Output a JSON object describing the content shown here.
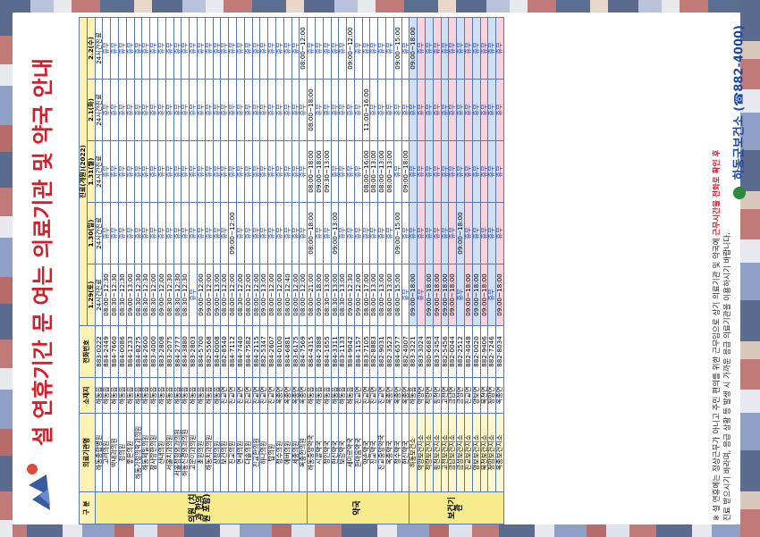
{
  "title": "설 연휴기간 문 여는 의료기관 및 약국 안내",
  "logo_text": "하동",
  "header": {
    "col_category": "구 분",
    "col_name": "의료기관명",
    "col_location": "소재지",
    "col_phone": "전화번호",
    "work_note": "진료(개원)(2022)",
    "days": [
      "1.29(토)",
      "1.30(일)",
      "1.31(월)",
      "2.1(화)",
      "2.2(수)"
    ],
    "day_notes": [
      "24시간진료",
      "24시간진료",
      "24시간진료",
      "24시간진료",
      "24시간진료"
    ]
  },
  "groups": [
    {
      "label": "의원 (치과 한의원 포함)",
      "rows": [
        [
          "하동종합병원",
          "하동읍",
          "883-0222",
          "24시간진료",
          "24시간진료",
          "24시간진료",
          "24시간진료",
          "24시간진료"
        ],
        [
          "고려의원",
          "하동읍",
          "884-2449",
          "08:00~12:30",
          "휴무",
          "휴무",
          "휴무",
          "휴무"
        ],
        [
          "박내과의원",
          "하동읍",
          "884-7660",
          "08:30~12:30",
          "휴무",
          "휴무",
          "휴무",
          "휴무"
        ],
        [
          "정의원",
          "하동읍",
          "884-0086",
          "08:30~12:30",
          "휴무",
          "휴무",
          "휴무",
          "휴무"
        ],
        [
          "좋은의원",
          "하동읍",
          "884-1233",
          "09:00~13:00",
          "휴무",
          "휴무",
          "휴무",
          "휴무"
        ],
        [
          "하동가정의학과의원",
          "하동읍",
          "884-8275",
          "08:30~12:30",
          "휴무",
          "휴무",
          "휴무",
          "휴무"
        ],
        [
          "하동제일의원",
          "하동읍",
          "884-2600",
          "08:30~12:30",
          "휴무",
          "휴무",
          "휴무",
          "휴무"
        ],
        [
          "참사랑한의원",
          "하동읍",
          "883-4000",
          "08:30~12:00",
          "휴무",
          "휴무",
          "휴무",
          "휴무"
        ],
        [
          "산내의원",
          "하동읍",
          "883-2808",
          "09:00~12:00",
          "휴무",
          "휴무",
          "휴무",
          "휴무"
        ],
        [
          "서울치과의원",
          "하동읍",
          "883-2075",
          "08:30~12:30",
          "휴무",
          "휴무",
          "휴무",
          "휴무"
        ],
        [
          "서울정형외과의원",
          "하동읍",
          "884-2777",
          "08:30~12:30",
          "휴무",
          "휴무",
          "휴무",
          "휴무"
        ],
        [
          "하동신경외과의원",
          "하동읍",
          "884-3880",
          "08:30~12:30",
          "휴무",
          "휴무",
          "휴무",
          "휴무"
        ],
        [
          "고운이과의원",
          "하동읍",
          "883-2803",
          "휴무",
          "휴무",
          "휴무",
          "휴무",
          "휴무"
        ],
        [
          "초원의원",
          "하동읍",
          "884-5700",
          "09:00~12:00",
          "휴무",
          "휴무",
          "휴무",
          "휴무"
        ],
        [
          "하동치과의원",
          "하동읍",
          "882-5568",
          "09:00~12:00",
          "휴무",
          "휴무",
          "휴무",
          "휴무"
        ],
        [
          "상정의원",
          "하동읍",
          "884-0008",
          "09:00~13:00",
          "휴무",
          "휴무",
          "휴무",
          "휴무"
        ],
        [
          "보건의원",
          "진교면",
          "882-8540",
          "08:00~12:00",
          "휴무",
          "휴무",
          "휴무",
          "휴무"
        ],
        [
          "진교의원",
          "진교면",
          "884-7112",
          "08:00~12:00",
          "09:00~12:00",
          "휴무",
          "휴무",
          "휴무"
        ],
        [
          "연세의원",
          "진교면",
          "884-7440",
          "08:30~12:00",
          "휴무",
          "휴무",
          "휴무",
          "휴무"
        ],
        [
          "다솔의원",
          "진교면",
          "884-7582",
          "08:00~12:00",
          "휴무",
          "휴무",
          "휴무",
          "휴무"
        ],
        [
          "진교한의원",
          "진교면",
          "884-2115",
          "08:00~12:00",
          "휴무",
          "휴무",
          "휴무",
          "휴무"
        ],
        [
          "하나의원",
          "진교면",
          "882-5347",
          "09:00~13:00",
          "휴무",
          "휴무",
          "휴무",
          "휴무"
        ],
        [
          "탑의원",
          "진교면",
          "884-2607",
          "08:00~12:00",
          "휴무",
          "휴무",
          "휴무",
          "휴무"
        ],
        [
          "정수의원",
          "옥종면",
          "884-0100",
          "08:00~12:00",
          "휴무",
          "휴무",
          "휴무",
          "휴무"
        ],
        [
          "에버의원",
          "옥종면",
          "884-6881",
          "08:00~12:40",
          "휴무",
          "휴무",
          "휴무",
          "휴무"
        ],
        [
          "세종의원",
          "옥종면",
          "883-6175",
          "08:00~12:00",
          "휴무",
          "휴무",
          "휴무",
          "휴무"
        ],
        [
          "옥종한의원",
          "옥종면",
          "884-7569",
          "08:00~12:00",
          "휴무",
          "휴무",
          "휴무",
          "08:00~12:00"
        ]
      ]
    },
    {
      "label": "약국",
      "rows": [
        [
          "하동중앙약국",
          "하동읍",
          "884-4315",
          "08:00~21:00",
          "08:00~18:00",
          "08:00~18:00",
          "08:00~18:00",
          "휴무"
        ],
        [
          "시골약국",
          "하동읍",
          "884-2888",
          "09:00~18:00",
          "휴무",
          "09:00~18:00",
          "휴무",
          "휴무"
        ],
        [
          "정인약국",
          "하동읍",
          "884-1655",
          "08:30~13:00",
          "휴무",
          "09:30~13:00",
          "휴무",
          "휴무"
        ],
        [
          "한신약국",
          "하동읍",
          "884-3311",
          "08:30~13:00",
          "09:00~13:00",
          "휴무",
          "휴무",
          "휴무"
        ],
        [
          "보광약국",
          "하동읍",
          "883-1133",
          "08:30~13:00",
          "휴무",
          "휴무",
          "휴무",
          "휴무"
        ],
        [
          "새미르약국",
          "하동읍",
          "884-9042",
          "09:00~12:30",
          "휴무",
          "휴무",
          "휴무",
          "09:00~12:00"
        ],
        [
          "한마음약국",
          "진교면",
          "884-1157",
          "09:00~12:00",
          "휴무",
          "휴무",
          "휴무",
          "휴무"
        ],
        [
          "약손약국",
          "진교면",
          "883-7105",
          "08:00~17:00",
          "휴무",
          "08:00~16:00",
          "11:00~16:00",
          "휴무"
        ],
        [
          "진교약국",
          "진교면",
          "882-8883",
          "08:00~13:00",
          "휴무",
          "08:00~13:00",
          "휴무",
          "휴무"
        ],
        [
          "진교중앙약국",
          "진교면",
          "882-9031",
          "08:00~13:00",
          "휴무",
          "08:00~13:00",
          "휴무",
          "휴무"
        ],
        [
          "옥종약국",
          "옥종면",
          "882-3523",
          "08:00~13:00",
          "휴무",
          "08:00~13:00",
          "휴무",
          "휴무"
        ],
        [
          "정수약국",
          "옥종면",
          "884-6577",
          "08:00~15:00",
          "09:00~15:00",
          "휴무",
          "휴무",
          "09:00~15:00"
        ],
        [
          "한신약국",
          "옥종면",
          "882-4007",
          "휴무",
          "휴무",
          "09:00~18:00",
          "휴무",
          "휴무"
        ]
      ]
    },
    {
      "label": "보건기관",
      "rows": [
        [
          "하동보건소",
          "하동읍",
          "883-3221",
          "09:00~18:00",
          "휴무",
          "휴무",
          "휴무",
          "09:00~18:00"
        ],
        [
          "악양보건지소",
          "악양면",
          "883-3024",
          "휴무",
          "휴무",
          "휴무",
          "휴무",
          "휴무"
        ],
        [
          "적량보건지소",
          "적량면",
          "880-6683",
          "09:00~18:00",
          "휴무",
          "휴무",
          "휴무",
          "휴무"
        ],
        [
          "횡천보건지소",
          "횡천면",
          "883-2454",
          "09:00~18:00",
          "휴무",
          "휴무",
          "휴무",
          "휴무"
        ],
        [
          "고전보건지소",
          "고전면",
          "882-5456",
          "09:00~18:00",
          "휴무",
          "휴무",
          "휴무",
          "휴무"
        ],
        [
          "금남보건지소",
          "금남면",
          "882-0044",
          "09:00~18:00",
          "휴무",
          "휴무",
          "휴무",
          "휴무"
        ],
        [
          "금성보건지소",
          "금성면",
          "882-2512",
          "휴무",
          "09:00~18:00",
          "휴무",
          "휴무",
          "휴무"
        ],
        [
          "진교보건지소",
          "진교면",
          "882-4048",
          "09:00~18:00",
          "휴무",
          "휴무",
          "휴무",
          "휴무"
        ],
        [
          "양보보건지소",
          "양보면",
          "882-0020",
          "09:00~18:00",
          "휴무",
          "휴무",
          "휴무",
          "휴무"
        ],
        [
          "북천보건지소",
          "북천면",
          "882-9406",
          "09:00~18:00",
          "휴무",
          "휴무",
          "휴무",
          "휴무"
        ],
        [
          "청암보건지소",
          "청암면",
          "882-7246",
          "휴무",
          "휴무",
          "휴무",
          "휴무",
          "휴무"
        ],
        [
          "옥종보건지소",
          "옥종면",
          "882-8034",
          "09:00~18:00",
          "휴무",
          "휴무",
          "휴무",
          "휴무"
        ]
      ]
    }
  ],
  "footer": {
    "note1": "※ 설 연휴에는 정상근무가 아니고 주민 편의를 위한 근무임으로 상기 의료기관 및 약국에",
    "note1_red": "근무시간을 전화로 확인 후",
    "note2": "진료 받으시기 바라며, 응급 상황 등 발생 시 가까운 응급 의료기관을 이용하시기 바랍니다.",
    "org": "하동군보건소",
    "org_phone": "(☎882-4000)"
  }
}
